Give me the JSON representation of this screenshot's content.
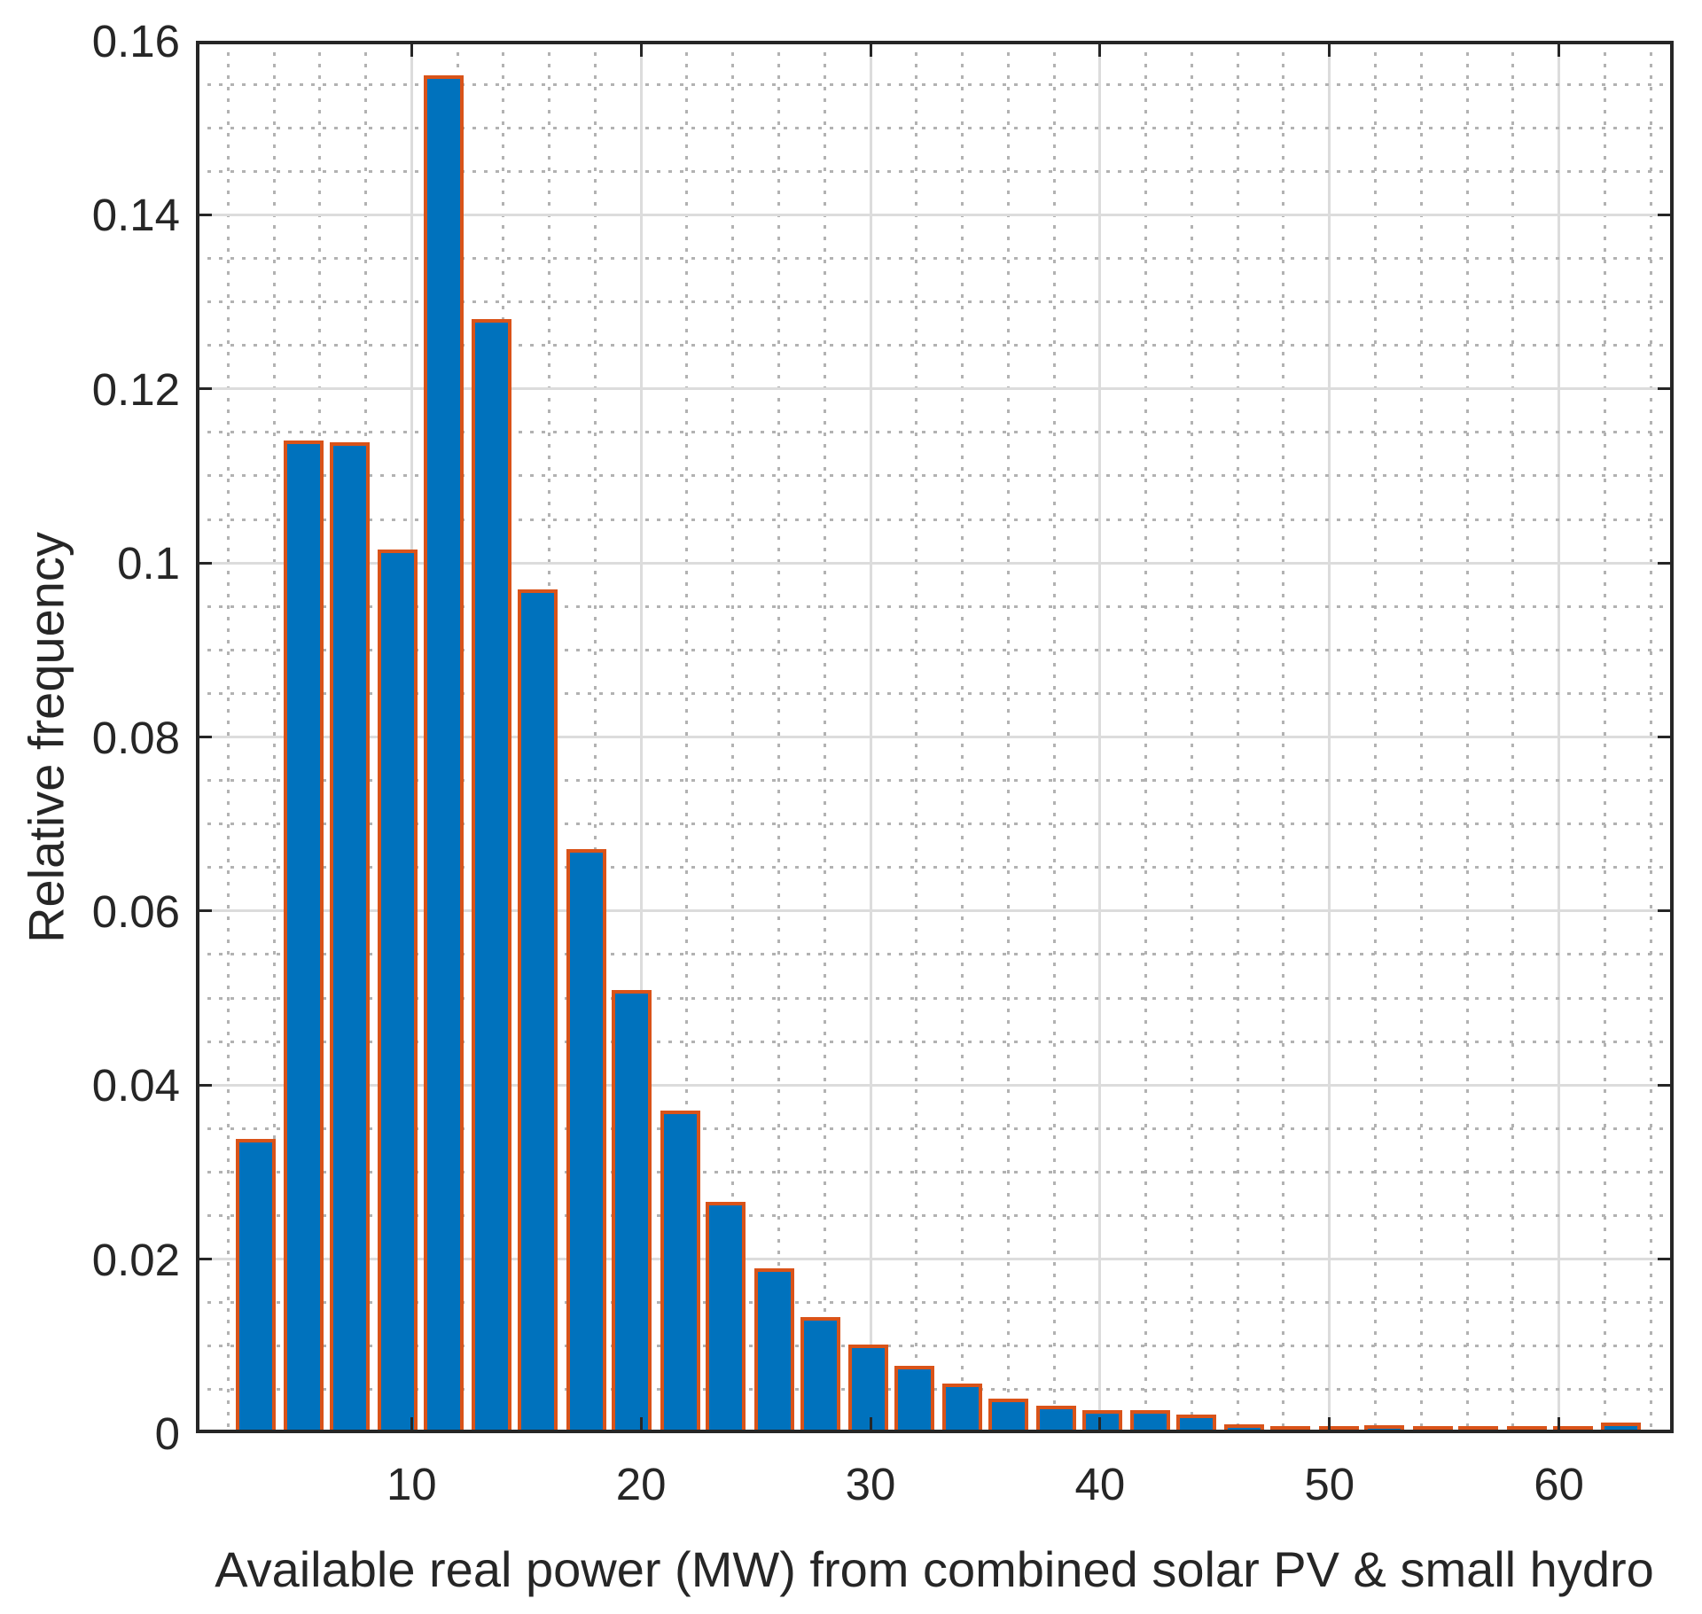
{
  "figure": {
    "xlabel": "Available real power (MW) from combined solar PV & small hydro",
    "ylabel": "Relative frequency"
  },
  "chart_data": {
    "type": "bar",
    "title": "",
    "xlabel": "Available real power (MW) from combined solar PV & small hydro",
    "ylabel": "Relative frequency",
    "xlim": [
      0.6,
      65.0
    ],
    "ylim": [
      0,
      0.16
    ],
    "xticks": [
      10,
      20,
      30,
      40,
      50,
      60
    ],
    "xtick_labels": [
      "10",
      "20",
      "30",
      "40",
      "50",
      "60"
    ],
    "yticks": [
      0,
      0.02,
      0.04,
      0.06,
      0.08,
      0.1,
      0.12,
      0.14,
      0.16
    ],
    "ytick_labels": [
      "0",
      "0.02",
      "0.04",
      "0.06",
      "0.08",
      "0.1",
      "0.12",
      "0.14",
      "0.16"
    ],
    "grid": true,
    "x_minor_step": 2,
    "y_minor_step": 0.005,
    "legend": "none",
    "bin_width": 2.05,
    "bar_display_width": 1.74,
    "bin_centers": [
      3.2,
      5.3,
      7.3,
      9.4,
      11.4,
      13.5,
      15.5,
      17.6,
      19.6,
      21.7,
      23.7,
      25.8,
      27.8,
      29.9,
      31.9,
      34.0,
      36.0,
      38.1,
      40.1,
      42.2,
      44.2,
      46.3,
      48.3,
      50.4,
      52.4,
      54.5,
      56.5,
      58.6,
      60.6,
      62.7
    ],
    "values": [
      0.0338,
      0.1141,
      0.1139,
      0.1015,
      0.156,
      0.128,
      0.097,
      0.0671,
      0.0509,
      0.0371,
      0.0266,
      0.0189,
      0.0133,
      0.0102,
      0.0077,
      0.0057,
      0.004,
      0.0032,
      0.0026,
      0.0026,
      0.0021,
      0.001,
      0.0007,
      0.0006,
      0.0009,
      0.0007,
      0.0005,
      0.0003,
      0.0005,
      0.0012
    ],
    "colors": {
      "bar_fill": "#0072BD",
      "bar_edge": "#D95319",
      "grid_major": "#dcdcdc",
      "grid_minor": "#b2b2b2",
      "axis": "#262626",
      "background": "#ffffff"
    }
  }
}
